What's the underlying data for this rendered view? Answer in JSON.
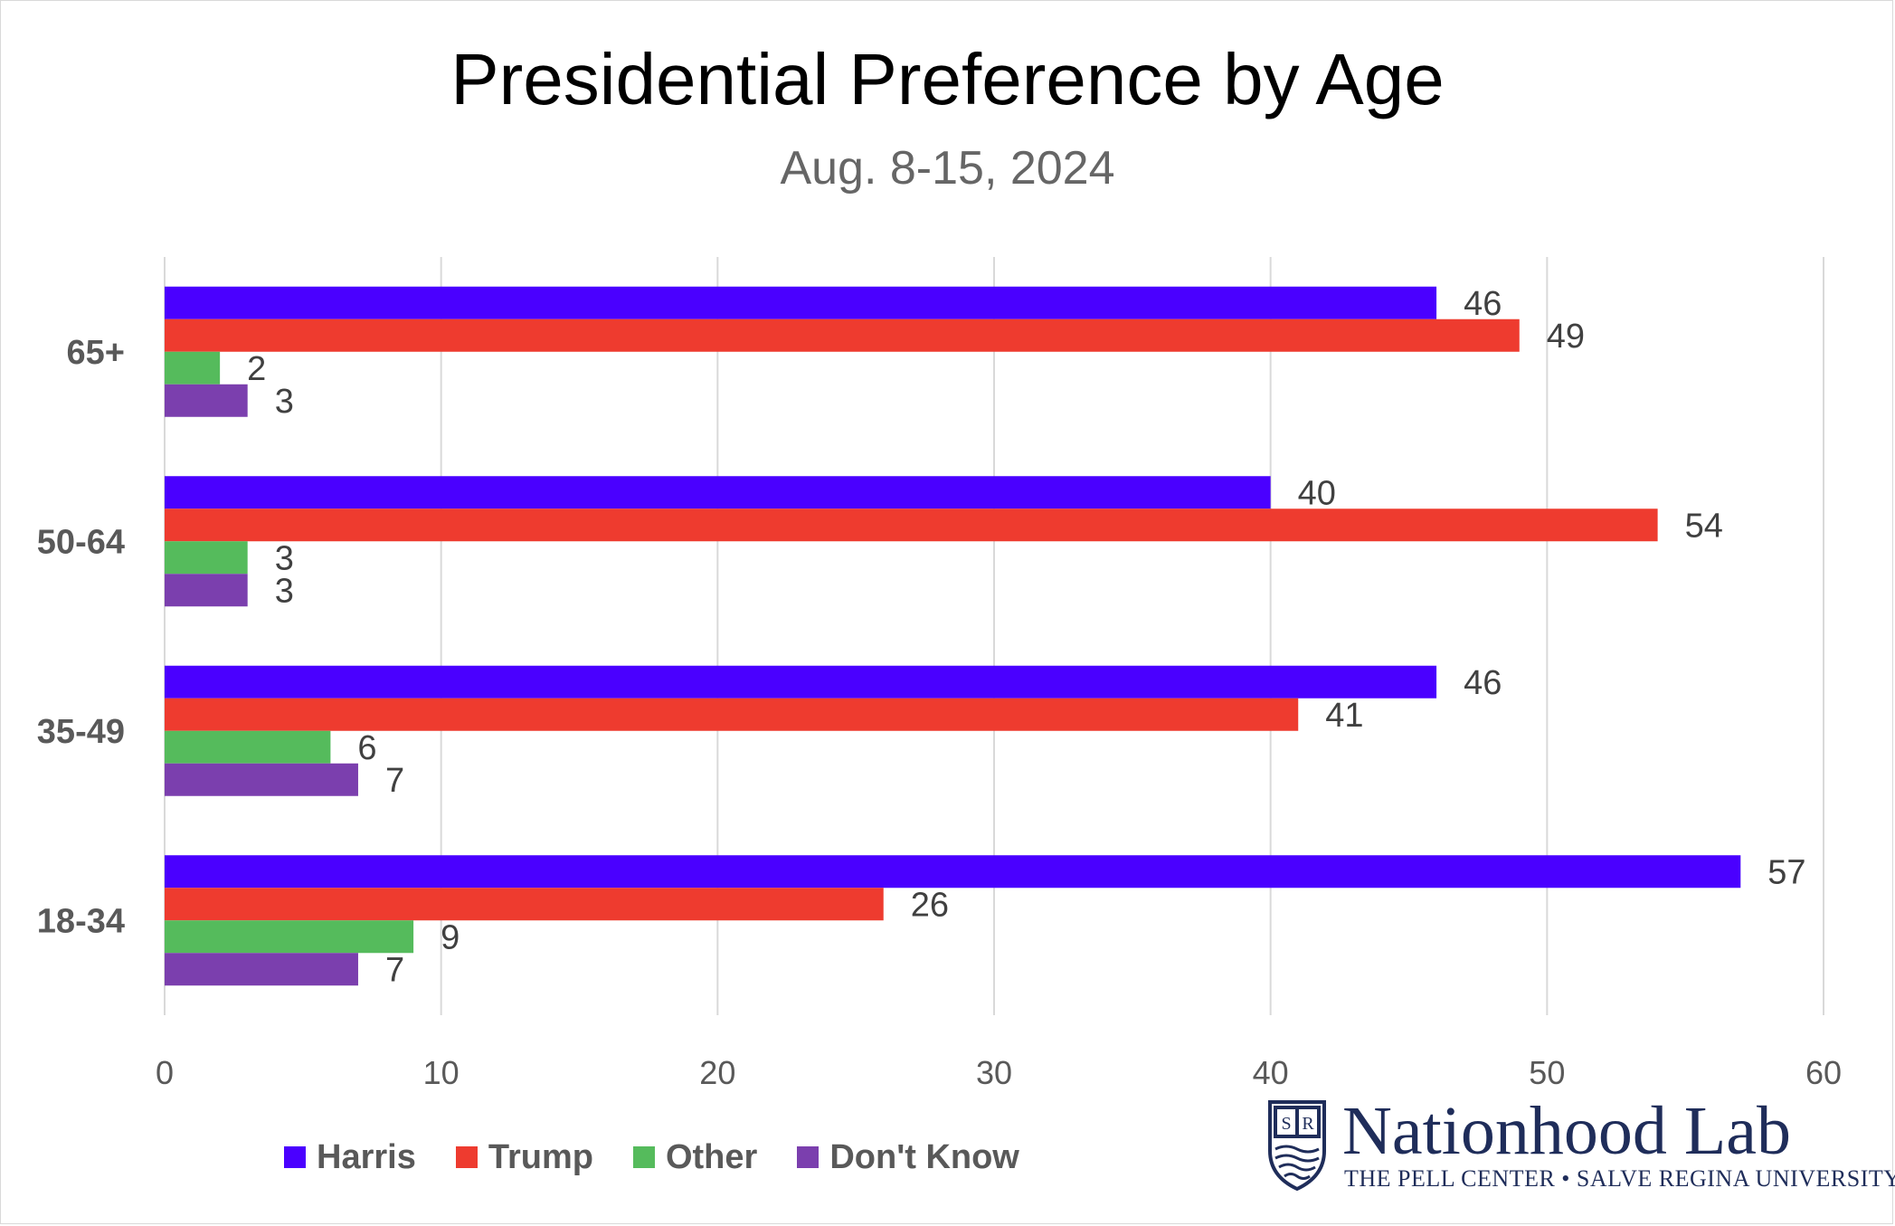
{
  "chart_data": {
    "type": "bar",
    "orientation": "horizontal",
    "title": "Presidential Preference by Age",
    "subtitle": "Aug. 8-15, 2024",
    "categories": [
      "65+",
      "50-64",
      "35-49",
      "18-34"
    ],
    "series": [
      {
        "name": "Harris",
        "color": "#4a00ff",
        "values": [
          46,
          40,
          46,
          57
        ]
      },
      {
        "name": "Trump",
        "color": "#ee3b2f",
        "values": [
          49,
          54,
          41,
          26
        ]
      },
      {
        "name": "Other",
        "color": "#55bb5c",
        "values": [
          2,
          3,
          6,
          9
        ]
      },
      {
        "name": "Don't Know",
        "color": "#7b3fae",
        "values": [
          3,
          3,
          7,
          7
        ]
      }
    ],
    "xlim": [
      0,
      60
    ],
    "xticks": [
      0,
      10,
      20,
      30,
      40,
      50,
      60
    ],
    "grid": "vertical",
    "legend": "bottom-left",
    "data_labels": true
  },
  "logo": {
    "name": "Nationhood Lab",
    "tagline": "THE PELL CENTER • SALVE REGINA UNIVERSITY",
    "shield_letters": [
      "S",
      "R"
    ]
  }
}
